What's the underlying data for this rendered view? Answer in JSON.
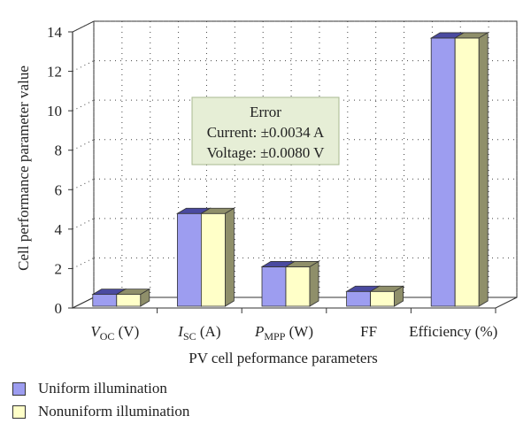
{
  "chart_data": {
    "type": "bar",
    "title": "",
    "xlabel": "PV cell peformance parameters",
    "ylabel": "Cell performance parameter value",
    "ylim": [
      0,
      14
    ],
    "yticks": [
      "0",
      "2",
      "4",
      "6",
      "8",
      "10",
      "12",
      "14"
    ],
    "categories": [
      {
        "main": "V",
        "sub": "OC",
        "suffix": " (V)",
        "italic": true
      },
      {
        "main": "I",
        "sub": "SC",
        "suffix": " (A)",
        "italic": true
      },
      {
        "main": "P",
        "sub": "MPP",
        "suffix": " (W)",
        "italic": true
      },
      {
        "main": "FF",
        "sub": "",
        "suffix": "",
        "italic": false
      },
      {
        "main": "Efficiency (%)",
        "sub": "",
        "suffix": "",
        "italic": false
      }
    ],
    "series": [
      {
        "name": "Uniform illumination",
        "values": [
          0.6,
          4.7,
          2.0,
          0.75,
          13.6
        ],
        "color": "#9d9df0",
        "side": "#4a4aa0"
      },
      {
        "name": "Nonuniform illumination",
        "values": [
          0.6,
          4.7,
          2.0,
          0.75,
          13.6
        ],
        "color": "#ffffc8",
        "side": "#8f8f6a"
      }
    ],
    "grid": "dotted",
    "legend_position": "bottom-left",
    "annotation": {
      "lines": [
        "Error",
        "Current: ±0.0034 A",
        "Voltage: ±0.0080 V"
      ],
      "background": "#e6eed6",
      "border": "#a8b890"
    }
  },
  "legend": {
    "items": [
      {
        "label": "Uniform illumination",
        "color": "#9d9df0"
      },
      {
        "label": "Nonuniform illumination",
        "color": "#ffffc8"
      }
    ]
  }
}
